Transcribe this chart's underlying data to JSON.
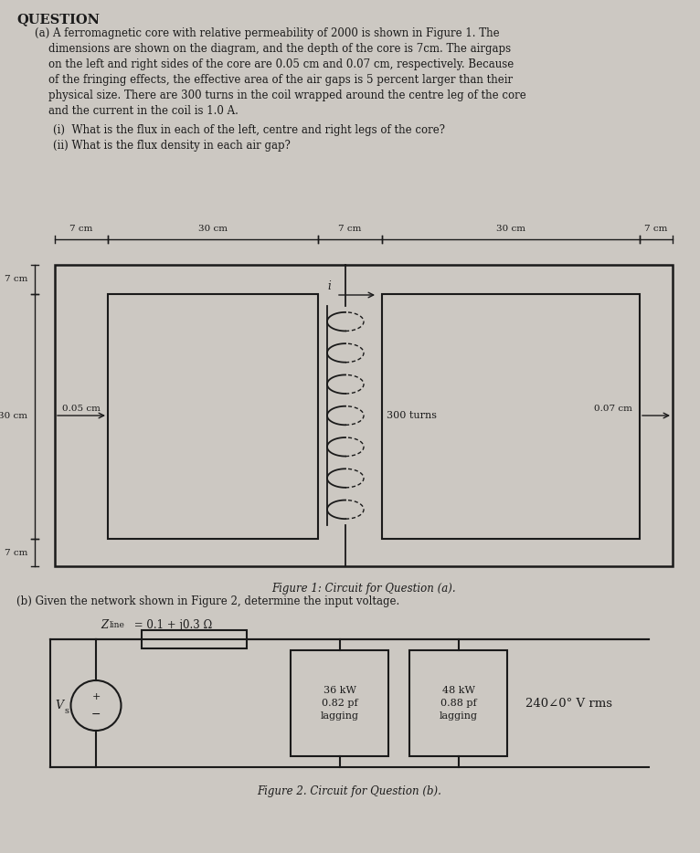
{
  "bg_color": "#ccc8c2",
  "text_color": "#1a1a1a",
  "title": "QUESTION",
  "para_lines": [
    "(a) A ferromagnetic core with relative permeability of 2000 is shown in Figure 1. The",
    "    dimensions are shown on the diagram, and the depth of the core is 7cm. The airgaps",
    "    on the left and right sides of the core are 0.05 cm and 0.07 cm, respectively. Because",
    "    of the fringing effects, the effective area of the air gaps is 5 percent larger than their",
    "    physical size. There are 300 turns in the coil wrapped around the centre leg of the core",
    "    and the current in the coil is 1.0 A."
  ],
  "sub_i": "(i)  What is the flux in each of the left, centre and right legs of the core?",
  "sub_ii": "(ii) What is the flux density in each air gap?",
  "fig1_caption": "Figure 1: Circuit for Question (a).",
  "para_b": "(b) Given the network shown in Figure 2, determine the input voltage.",
  "zline_label": "Z",
  "zline_sub": "line",
  "zline_rest": " = 0.1 + j0.3 Ω",
  "load1_line1": "36 kW",
  "load1_line2": "0.82 pf",
  "load1_line3": "lagging",
  "load2_line1": "48 kW",
  "load2_line2": "0.88 pf",
  "load2_line3": "lagging",
  "voltage_label": "240∠0° V rms",
  "vs_label": "V",
  "vs_sub": "s",
  "fig2_caption": "Figure 2. Circuit for Question (b).",
  "font_size_text": 8.5,
  "font_size_small": 7.5,
  "font_size_label": 8.0
}
